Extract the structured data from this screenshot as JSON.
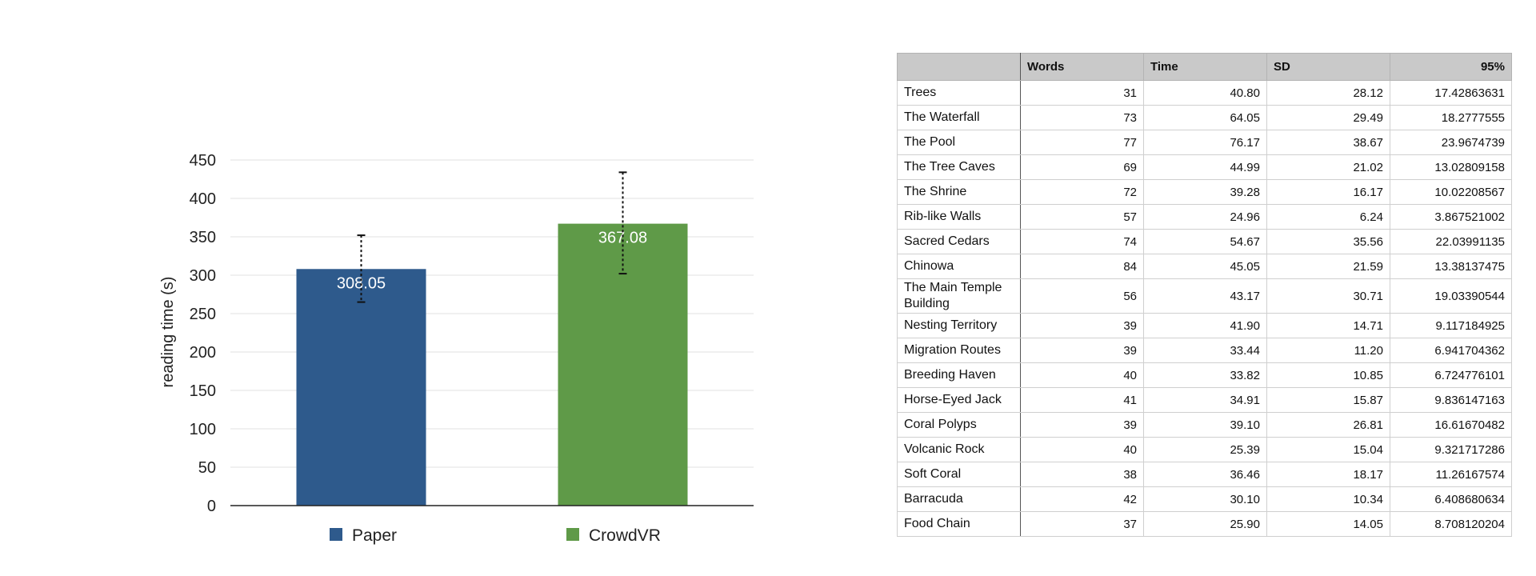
{
  "chart_data": {
    "type": "bar",
    "categories": [
      "Paper",
      "CrowdVR"
    ],
    "values": [
      308.05,
      367.08
    ],
    "error_low": [
      265,
      302
    ],
    "error_high": [
      352,
      434
    ],
    "value_labels": [
      "308.05",
      "367.08"
    ],
    "colors": [
      "#2e5a8c",
      "#5f9a48"
    ],
    "ylabel": "reading time (s)",
    "ylim": [
      0,
      450
    ],
    "yticks": [
      0,
      50,
      100,
      150,
      200,
      250,
      300,
      350,
      400,
      450
    ],
    "grid": true,
    "legend": [
      "Paper",
      "CrowdVR"
    ],
    "legend_position": "bottom"
  },
  "table": {
    "headers": [
      "",
      "Words",
      "Time",
      "SD",
      "95%"
    ],
    "rows": [
      {
        "name": "Trees",
        "words": "31",
        "time": "40.80",
        "sd": "28.12",
        "ci": "17.42863631"
      },
      {
        "name": "The Waterfall",
        "words": "73",
        "time": "64.05",
        "sd": "29.49",
        "ci": "18.2777555"
      },
      {
        "name": "The Pool",
        "words": "77",
        "time": "76.17",
        "sd": "38.67",
        "ci": "23.9674739"
      },
      {
        "name": "The Tree Caves",
        "words": "69",
        "time": "44.99",
        "sd": "21.02",
        "ci": "13.02809158"
      },
      {
        "name": "The Shrine",
        "words": "72",
        "time": "39.28",
        "sd": "16.17",
        "ci": "10.02208567"
      },
      {
        "name": "Rib-like Walls",
        "words": "57",
        "time": "24.96",
        "sd": "6.24",
        "ci": "3.867521002"
      },
      {
        "name": "Sacred Cedars",
        "words": "74",
        "time": "54.67",
        "sd": "35.56",
        "ci": "22.03991135"
      },
      {
        "name": "Chinowa",
        "words": "84",
        "time": "45.05",
        "sd": "21.59",
        "ci": "13.38137475"
      },
      {
        "name": "The Main Temple Building",
        "words": "56",
        "time": "43.17",
        "sd": "30.71",
        "ci": "19.03390544"
      },
      {
        "name": "Nesting Territory",
        "words": "39",
        "time": "41.90",
        "sd": "14.71",
        "ci": "9.117184925"
      },
      {
        "name": "Migration Routes",
        "words": "39",
        "time": "33.44",
        "sd": "11.20",
        "ci": "6.941704362"
      },
      {
        "name": "Breeding Haven",
        "words": "40",
        "time": "33.82",
        "sd": "10.85",
        "ci": "6.724776101"
      },
      {
        "name": "Horse-Eyed Jack",
        "words": "41",
        "time": "34.91",
        "sd": "15.87",
        "ci": "9.836147163"
      },
      {
        "name": "Coral Polyps",
        "words": "39",
        "time": "39.10",
        "sd": "26.81",
        "ci": "16.61670482"
      },
      {
        "name": "Volcanic Rock",
        "words": "40",
        "time": "25.39",
        "sd": "15.04",
        "ci": "9.321717286"
      },
      {
        "name": "Soft Coral",
        "words": "38",
        "time": "36.46",
        "sd": "18.17",
        "ci": "11.26167574"
      },
      {
        "name": "Barracuda",
        "words": "42",
        "time": "30.10",
        "sd": "10.34",
        "ci": "6.408680634"
      },
      {
        "name": "Food Chain",
        "words": "37",
        "time": "25.90",
        "sd": "14.05",
        "ci": "8.708120204"
      }
    ]
  }
}
